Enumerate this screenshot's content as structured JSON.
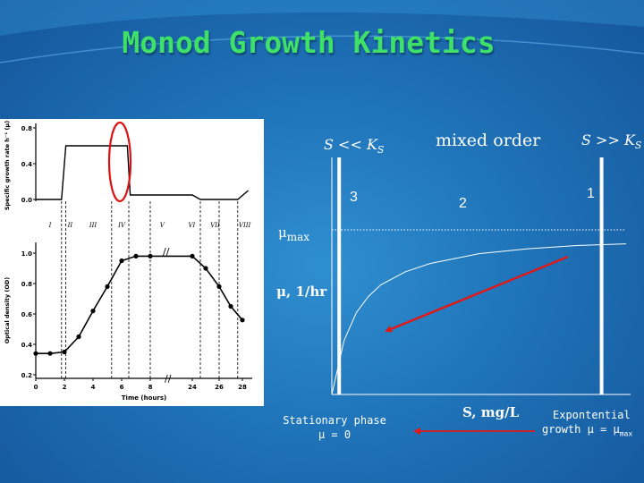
{
  "slide": {
    "title": "Monod Growth Kinetics"
  },
  "monod": {
    "regime_low": "S << K",
    "regime_low_sub": "S",
    "regime_mixed": "mixed order",
    "regime_high": "S >> K",
    "regime_high_sub": "S",
    "order_low": "3",
    "order_mixed": "2",
    "order_high": "1",
    "mu_max_label": "μ",
    "mu_max_sub": "max",
    "y_label": "μ, 1/hr",
    "x_label": "S, mg/L",
    "note_left_line1": "Stationary phase",
    "note_left_line2": "μ = 0",
    "note_right_line1": "Expontential",
    "note_right_line2": "growth μ = μ",
    "note_right_sub": "max"
  },
  "chart_data": [
    {
      "type": "line",
      "title": "",
      "xlabel": "Time (hours)",
      "ylabel_top": "Specific growth rate h⁻¹ (μ)",
      "ylabel_bottom": "Optical density (OD)",
      "x_ticks": [
        "0",
        "2",
        "4",
        "6",
        "8",
        "24",
        "26",
        "28"
      ],
      "phase_labels": [
        "I",
        "II",
        "III",
        "IV",
        "V",
        "VI",
        "VII",
        "VIII"
      ],
      "top_panel": {
        "y_ticks": [
          "0.0",
          "0.4",
          "0.8"
        ],
        "ylim": [
          0.0,
          0.8
        ],
        "x": [
          0,
          1.8,
          2.1,
          6.4,
          6.6,
          8,
          24,
          24.6,
          26,
          27.6,
          28.5
        ],
        "y": [
          0.0,
          0.0,
          0.6,
          0.6,
          0.05,
          0.05,
          0.05,
          0.0,
          0.0,
          0.0,
          0.1
        ]
      },
      "bottom_panel": {
        "y_ticks": [
          "0.2",
          "0.4",
          "0.6",
          "0.8",
          "1.0"
        ],
        "ylim": [
          0.2,
          1.1
        ],
        "x": [
          0,
          1,
          2,
          3,
          4,
          5,
          6,
          7,
          8,
          24,
          25,
          26,
          27,
          28
        ],
        "y": [
          0.34,
          0.34,
          0.35,
          0.45,
          0.62,
          0.78,
          0.95,
          0.98,
          0.98,
          0.98,
          0.9,
          0.78,
          0.65,
          0.56
        ]
      }
    },
    {
      "type": "line",
      "title": "",
      "xlabel": "S, mg/L",
      "ylabel": "μ, 1/hr",
      "asymptote_label": "μmax",
      "series": [
        {
          "x": [
            0,
            0.5,
            1,
            1.5,
            2,
            3,
            4,
            5,
            6,
            8,
            10,
            12
          ],
          "y": [
            0,
            0.33,
            0.5,
            0.6,
            0.67,
            0.75,
            0.8,
            0.83,
            0.86,
            0.89,
            0.91,
            0.92
          ]
        }
      ],
      "xlim": [
        0,
        12
      ],
      "ylim": [
        0,
        1.0
      ],
      "regime_boundaries": [
        0.3,
        11.0
      ]
    }
  ]
}
